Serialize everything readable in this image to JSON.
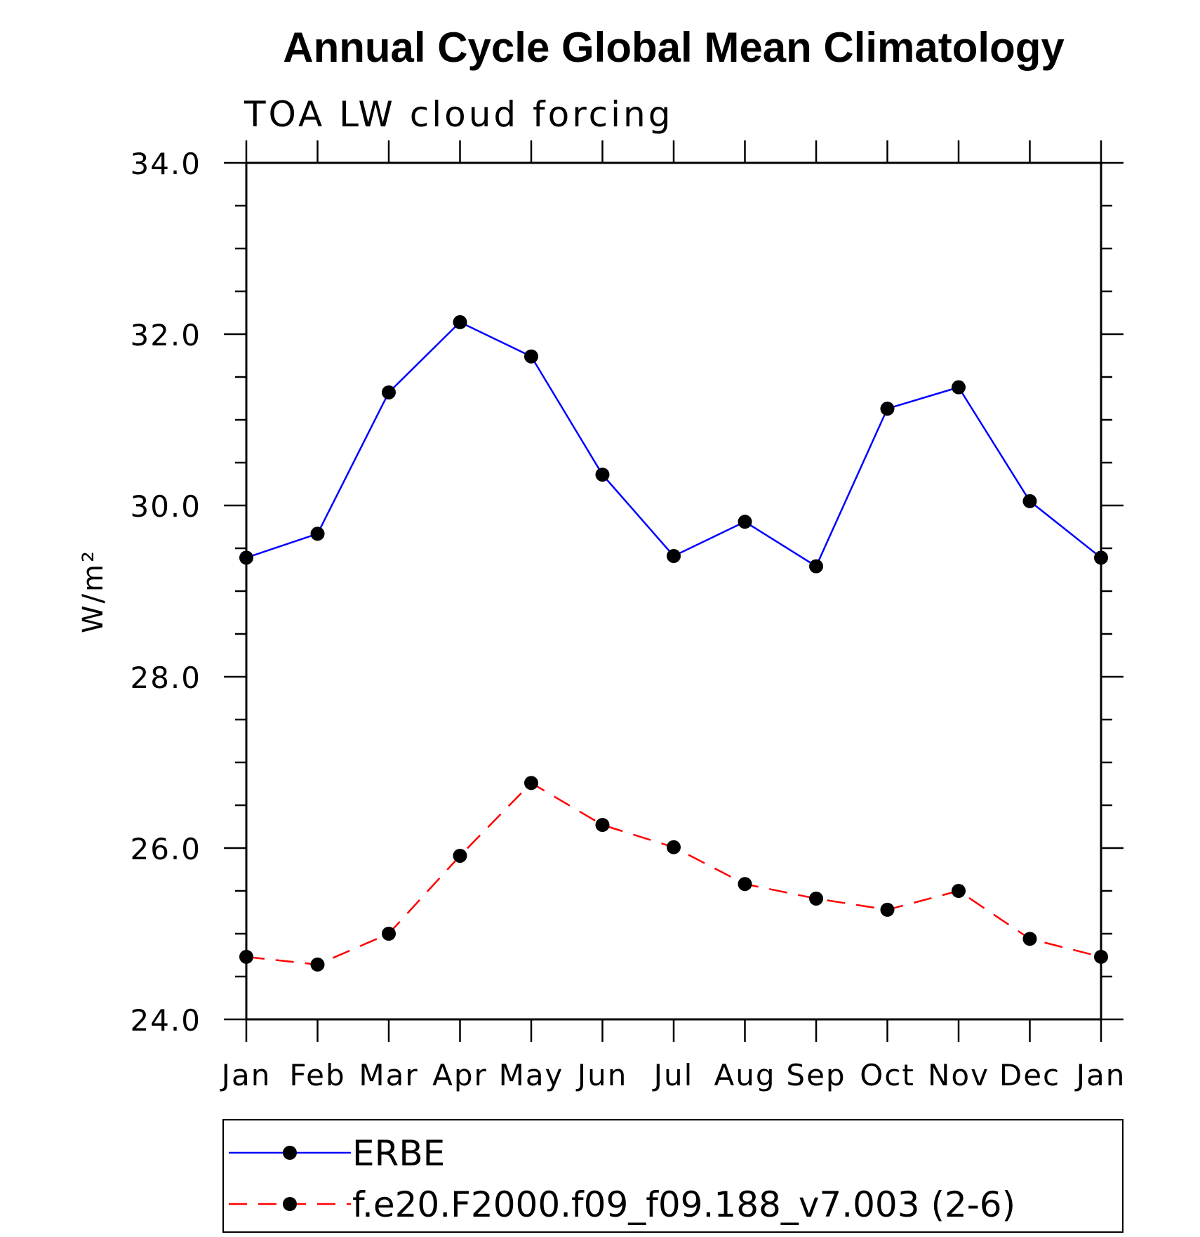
{
  "chart_data": {
    "type": "line",
    "title": "Annual Cycle Global Mean Climatology",
    "subtitle": "TOA LW cloud forcing",
    "ylabel": "W/m²",
    "xlabel": "",
    "ylim": [
      24.0,
      34.0
    ],
    "y_major_ticks": [
      24.0,
      26.0,
      28.0,
      30.0,
      32.0,
      34.0
    ],
    "y_major_tick_labels": [
      "24.0",
      "26.0",
      "28.0",
      "30.0",
      "32.0",
      "34.0"
    ],
    "y_minor_step": 0.5,
    "categories": [
      "Jan",
      "Feb",
      "Mar",
      "Apr",
      "May",
      "Jun",
      "Jul",
      "Aug",
      "Sep",
      "Oct",
      "Nov",
      "Dec",
      "Jan"
    ],
    "grid": false,
    "legend_position": "bottom",
    "series": [
      {
        "name": "ERBE",
        "color": "#0000ff",
        "dash": "solid",
        "marker": "filled-circle",
        "values": [
          29.39,
          29.67,
          31.32,
          32.14,
          31.74,
          30.36,
          29.41,
          29.81,
          29.29,
          31.13,
          31.38,
          30.05,
          29.39
        ]
      },
      {
        "name": "f.e20.F2000.f09_f09.188_v7.003 (2-6)",
        "color": "#ff0000",
        "dash": "dashed",
        "marker": "filled-circle",
        "values": [
          24.73,
          24.64,
          25.0,
          25.91,
          26.76,
          26.27,
          26.01,
          25.58,
          25.41,
          25.28,
          25.5,
          24.94,
          24.73
        ]
      }
    ]
  }
}
